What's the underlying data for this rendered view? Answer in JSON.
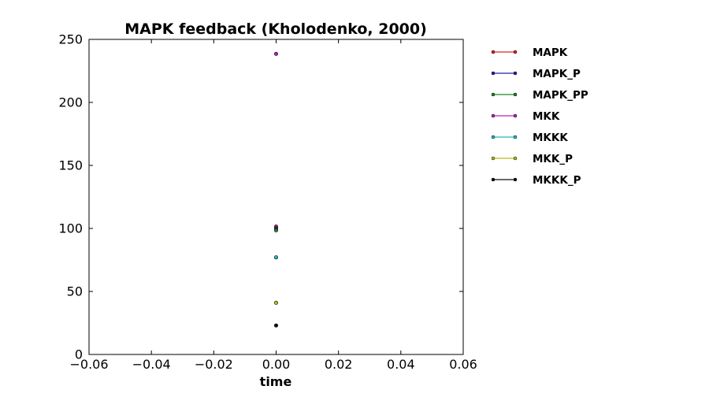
{
  "chart_data": {
    "type": "scatter",
    "title": "MAPK feedback (Kholodenko, 2000)",
    "xlabel": "time",
    "ylabel": "",
    "xlim": [
      -0.06,
      0.06
    ],
    "ylim": [
      0,
      250
    ],
    "xticks": [
      -0.06,
      -0.04,
      -0.02,
      0.0,
      0.02,
      0.04,
      0.06
    ],
    "xtick_labels": [
      "−0.06",
      "−0.04",
      "−0.02",
      "0.00",
      "0.02",
      "0.04",
      "0.06"
    ],
    "yticks": [
      0,
      50,
      100,
      150,
      200,
      250
    ],
    "ytick_labels": [
      "0",
      "50",
      "100",
      "150",
      "200",
      "250"
    ],
    "grid": false,
    "legend_position": "outside-right",
    "series": [
      {
        "name": "MAPK",
        "color": "#dd2222",
        "x": [
          0.0
        ],
        "y": [
          101.5
        ]
      },
      {
        "name": "MAPK_P",
        "color": "#2222aa",
        "x": [
          0.0
        ],
        "y": [
          100.0
        ]
      },
      {
        "name": "MAPK_PP",
        "color": "#228822",
        "x": [
          0.0
        ],
        "y": [
          98.5
        ]
      },
      {
        "name": "MKK",
        "color": "#bb22bb",
        "x": [
          0.0
        ],
        "y": [
          238.5
        ]
      },
      {
        "name": "MKKK",
        "color": "#22bbbb",
        "x": [
          0.0
        ],
        "y": [
          77.0
        ]
      },
      {
        "name": "MKK_P",
        "color": "#bbbb22",
        "x": [
          0.0
        ],
        "y": [
          41.0
        ]
      },
      {
        "name": "MKKK_P",
        "color": "#111111",
        "x": [
          0.0
        ],
        "y": [
          23.0
        ]
      }
    ]
  }
}
